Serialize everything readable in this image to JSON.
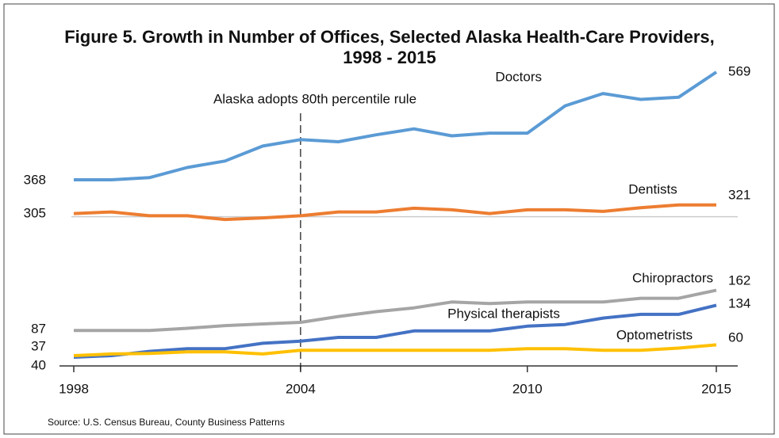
{
  "chart_data": {
    "type": "line",
    "title": "Figure 5. Growth in Number of Offices, Selected Alaska Health-Care Providers,",
    "subtitle": "1998 - 2015",
    "source": "Source: U.S. Census Bureau, County Business Patterns",
    "annotation": {
      "text": "Alaska adopts 80th percentile rule",
      "x": 2004
    },
    "x": [
      1998,
      1999,
      2000,
      2001,
      2002,
      2003,
      2004,
      2005,
      2006,
      2007,
      2008,
      2009,
      2010,
      2011,
      2012,
      2013,
      2014,
      2015
    ],
    "xlim": [
      1998,
      2015
    ],
    "xticks": [
      1998,
      2004,
      2010,
      2015
    ],
    "series": [
      {
        "name": "Doctors",
        "color": "#5b9bd5",
        "values": [
          368,
          368,
          372,
          391,
          403,
          431,
          443,
          439,
          452,
          463,
          450,
          455,
          455,
          506,
          529,
          518,
          522,
          569
        ]
      },
      {
        "name": "Dentists",
        "color": "#ed7d31",
        "values": [
          305,
          308,
          301,
          301,
          294,
          297,
          301,
          308,
          308,
          315,
          312,
          305,
          312,
          312,
          309,
          316,
          321,
          321
        ]
      },
      {
        "name": "Chiropractors",
        "color": "#a5a5a5",
        "values": [
          87,
          87,
          87,
          91,
          96,
          99,
          102,
          113,
          122,
          129,
          140,
          137,
          140,
          140,
          140,
          147,
          147,
          162
        ]
      },
      {
        "name": "Physical therapists",
        "color": "#4472c4",
        "values": [
          37,
          40,
          48,
          53,
          53,
          63,
          67,
          74,
          74,
          86,
          86,
          86,
          95,
          98,
          110,
          117,
          117,
          134
        ]
      },
      {
        "name": "Optometrists",
        "color": "#ffc000",
        "values": [
          40,
          43,
          44,
          47,
          47,
          43,
          50,
          50,
          50,
          50,
          50,
          50,
          53,
          53,
          50,
          50,
          54,
          60
        ]
      }
    ]
  }
}
